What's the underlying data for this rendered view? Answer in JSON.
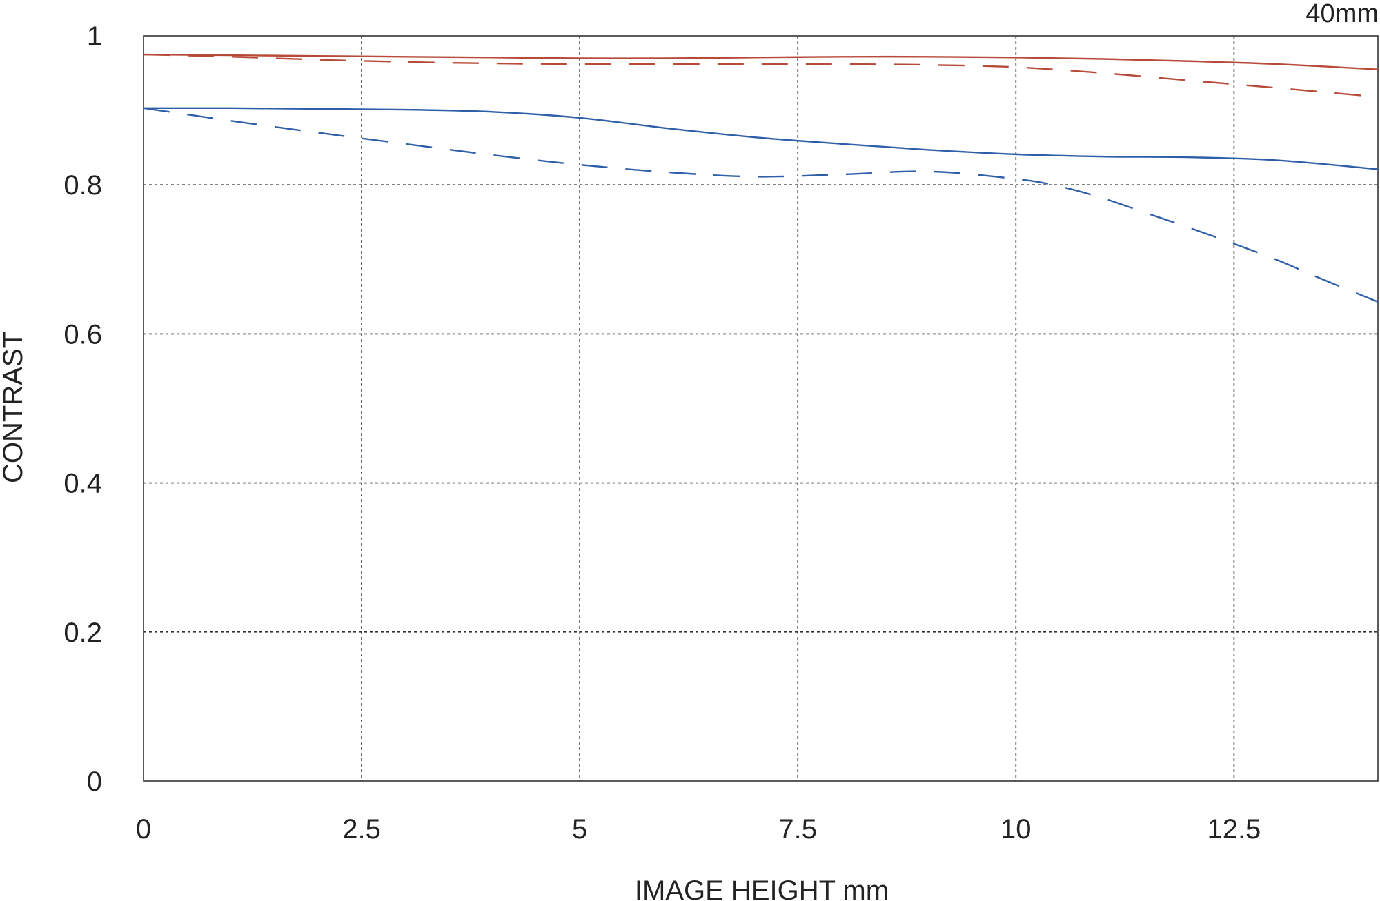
{
  "chart_data": {
    "type": "line",
    "title": "",
    "corner_label": "40mm",
    "xlabel": "IMAGE HEIGHT  mm",
    "ylabel": "CONTRAST",
    "xlim": [
      0,
      14.15
    ],
    "ylim": [
      0,
      1
    ],
    "x_ticks": [
      0,
      2.5,
      5,
      7.5,
      10,
      12.5
    ],
    "x_tick_labels": [
      "0",
      "2.5",
      "5",
      "7.5",
      "10",
      "12.5"
    ],
    "y_ticks": [
      0,
      0.2,
      0.4,
      0.6,
      0.8,
      1
    ],
    "y_tick_labels": [
      "0",
      "0.2",
      "0.4",
      "0.6",
      "0.8",
      "1"
    ],
    "grid": true,
    "series": [
      {
        "color": "#b84a3a",
        "dashed": false,
        "x": [
          0,
          1,
          2,
          3,
          4,
          5,
          6,
          7,
          8,
          9,
          10,
          11,
          12,
          13,
          14.15
        ],
        "y": [
          0.975,
          0.974,
          0.973,
          0.972,
          0.971,
          0.97,
          0.97,
          0.971,
          0.972,
          0.972,
          0.971,
          0.969,
          0.966,
          0.962,
          0.955
        ]
      },
      {
        "color": "#b84a3a",
        "dashed": true,
        "x": [
          0,
          1,
          2,
          3,
          4,
          5,
          6,
          7,
          8,
          9,
          10,
          11,
          12,
          13,
          14.15
        ],
        "y": [
          0.975,
          0.972,
          0.968,
          0.965,
          0.963,
          0.962,
          0.962,
          0.962,
          0.962,
          0.961,
          0.958,
          0.95,
          0.94,
          0.93,
          0.918
        ]
      },
      {
        "color": "#2f5fa8",
        "dashed": false,
        "x": [
          0,
          1,
          2,
          3,
          4,
          5,
          6,
          7,
          8,
          9,
          10,
          11,
          12,
          13,
          14.15
        ],
        "y": [
          0.903,
          0.903,
          0.902,
          0.901,
          0.898,
          0.89,
          0.876,
          0.864,
          0.855,
          0.847,
          0.841,
          0.838,
          0.837,
          0.833,
          0.821
        ]
      },
      {
        "color": "#2f5fa8",
        "dashed": true,
        "x": [
          0,
          1,
          2,
          3,
          4,
          5,
          6,
          7,
          8,
          9,
          10,
          10.5,
          11,
          11.5,
          12,
          12.5,
          13,
          13.5,
          14.15
        ],
        "y": [
          0.903,
          0.886,
          0.87,
          0.855,
          0.84,
          0.827,
          0.817,
          0.811,
          0.814,
          0.818,
          0.808,
          0.798,
          0.782,
          0.762,
          0.742,
          0.721,
          0.699,
          0.674,
          0.643
        ]
      }
    ]
  }
}
